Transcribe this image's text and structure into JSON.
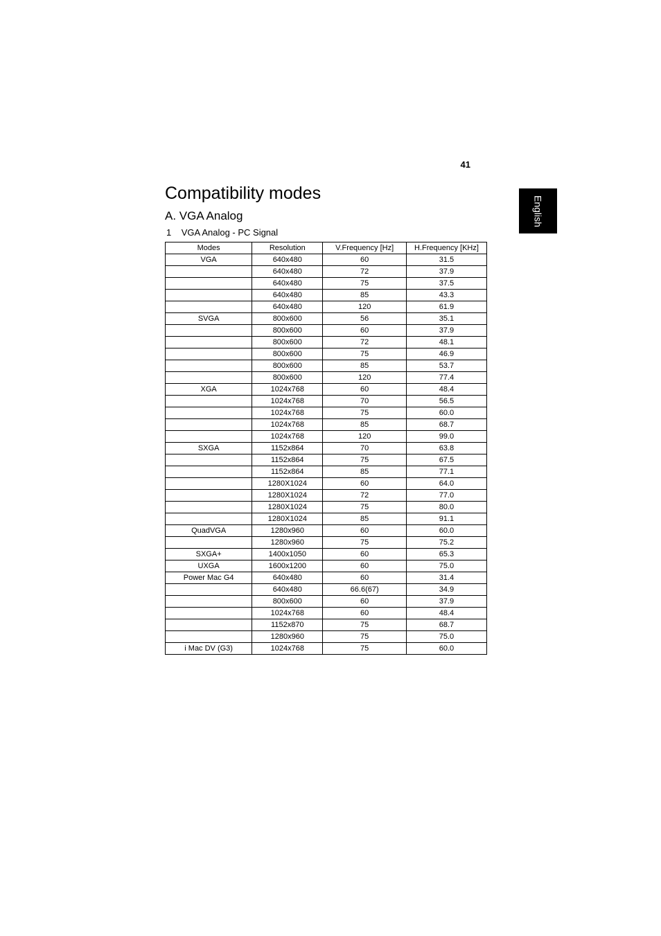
{
  "page_number": "41",
  "side_tab": "English",
  "heading": "Compatibility modes",
  "subheading": "A. VGA Analog",
  "list_label_num": "1",
  "list_label_text": "VGA Analog - PC Signal",
  "table": {
    "columns": [
      "Modes",
      "Resolution",
      "V.Frequency [Hz]",
      "H.Frequency [KHz]"
    ],
    "col_classes": [
      "col-modes",
      "col-res",
      "col-vfreq",
      "col-hfreq"
    ],
    "rows": [
      [
        "VGA",
        "640x480",
        "60",
        "31.5"
      ],
      [
        "",
        "640x480",
        "72",
        "37.9"
      ],
      [
        "",
        "640x480",
        "75",
        "37.5"
      ],
      [
        "",
        "640x480",
        "85",
        "43.3"
      ],
      [
        "",
        "640x480",
        "120",
        "61.9"
      ],
      [
        "SVGA",
        "800x600",
        "56",
        "35.1"
      ],
      [
        "",
        "800x600",
        "60",
        "37.9"
      ],
      [
        "",
        "800x600",
        "72",
        "48.1"
      ],
      [
        "",
        "800x600",
        "75",
        "46.9"
      ],
      [
        "",
        "800x600",
        "85",
        "53.7"
      ],
      [
        "",
        "800x600",
        "120",
        "77.4"
      ],
      [
        "XGA",
        "1024x768",
        "60",
        "48.4"
      ],
      [
        "",
        "1024x768",
        "70",
        "56.5"
      ],
      [
        "",
        "1024x768",
        "75",
        "60.0"
      ],
      [
        "",
        "1024x768",
        "85",
        "68.7"
      ],
      [
        "",
        "1024x768",
        "120",
        "99.0"
      ],
      [
        "SXGA",
        "1152x864",
        "70",
        "63.8"
      ],
      [
        "",
        "1152x864",
        "75",
        "67.5"
      ],
      [
        "",
        "1152x864",
        "85",
        "77.1"
      ],
      [
        "",
        "1280X1024",
        "60",
        "64.0"
      ],
      [
        "",
        "1280X1024",
        "72",
        "77.0"
      ],
      [
        "",
        "1280X1024",
        "75",
        "80.0"
      ],
      [
        "",
        "1280X1024",
        "85",
        "91.1"
      ],
      [
        "QuadVGA",
        "1280x960",
        "60",
        "60.0"
      ],
      [
        "",
        "1280x960",
        "75",
        "75.2"
      ],
      [
        "SXGA+",
        "1400x1050",
        "60",
        "65.3"
      ],
      [
        "UXGA",
        "1600x1200",
        "60",
        "75.0"
      ],
      [
        "Power Mac G4",
        "640x480",
        "60",
        "31.4"
      ],
      [
        "",
        "640x480",
        "66.6(67)",
        "34.9"
      ],
      [
        "",
        "800x600",
        "60",
        "37.9"
      ],
      [
        "",
        "1024x768",
        "60",
        "48.4"
      ],
      [
        "",
        "1152x870",
        "75",
        "68.7"
      ],
      [
        "",
        "1280x960",
        "75",
        "75.0"
      ],
      [
        "i Mac DV (G3)",
        "1024x768",
        "75",
        "60.0"
      ]
    ]
  },
  "colors": {
    "background": "#ffffff",
    "text": "#000000",
    "tab_bg": "#000000",
    "tab_text": "#ffffff",
    "border": "#000000"
  }
}
